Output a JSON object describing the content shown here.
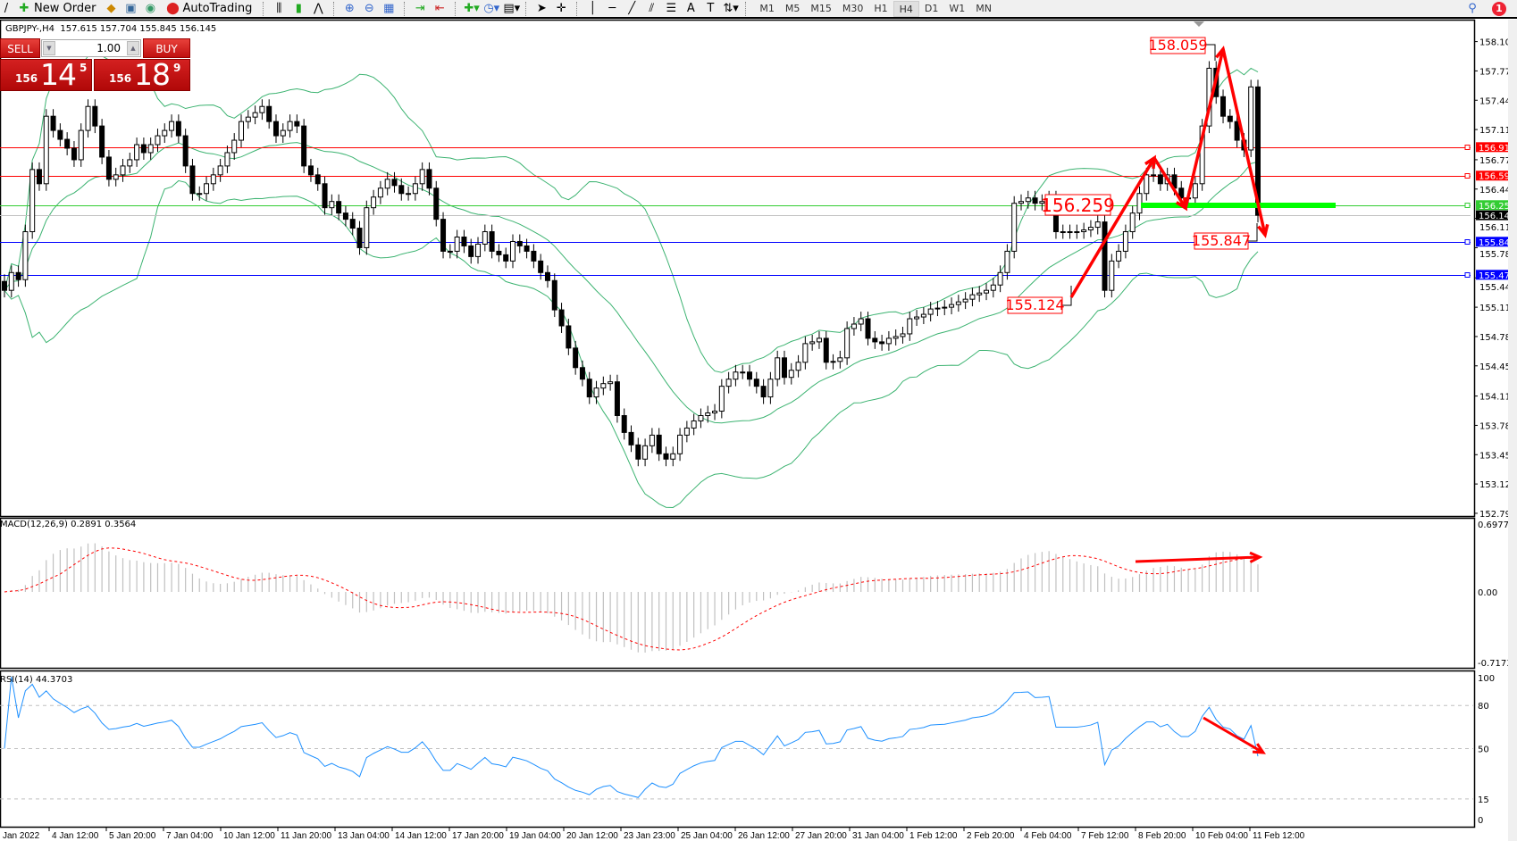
{
  "toolbar": {
    "new_order": "New Order",
    "autotrading": "AutoTrading",
    "timeframes": [
      "M1",
      "M5",
      "M15",
      "M30",
      "H1",
      "H4",
      "D1",
      "W1",
      "MN"
    ],
    "active_timeframe": "H4",
    "notifications": "1"
  },
  "symbol_header": "GBPJPY-,H4  157.615 157.704 155.845 156.145",
  "trade_panel": {
    "sell_label": "SELL",
    "buy_label": "BUY",
    "volume": "1.00",
    "sell_price": {
      "prefix": "156",
      "big": "14",
      "sup": "5"
    },
    "buy_price": {
      "prefix": "156",
      "big": "18",
      "sup": "9"
    }
  },
  "chart_data": {
    "type": "candlestick",
    "symbol": "GBPJPY-",
    "timeframe": "H4",
    "ylim": [
      152.79,
      158.1
    ],
    "price_ticks": [
      "158.100",
      "157.770",
      "157.440",
      "157.110",
      "156.770",
      "156.440",
      "156.110",
      "155.780",
      "155.440",
      "155.110",
      "154.780",
      "154.450",
      "154.110",
      "153.780",
      "153.450",
      "153.120",
      "152.790"
    ],
    "time_labels": [
      "Jan 2022",
      "4 Jan 12:00",
      "5 Jan 20:00",
      "7 Jan 04:00",
      "10 Jan 12:00",
      "11 Jan 20:00",
      "13 Jan 04:00",
      "14 Jan 12:00",
      "17 Jan 20:00",
      "19 Jan 04:00",
      "20 Jan 12:00",
      "23 Jan 23:00",
      "25 Jan 04:00",
      "26 Jan 12:00",
      "27 Jan 20:00",
      "31 Jan 04:00",
      "1 Feb 12:00",
      "2 Feb 20:00",
      "4 Feb 04:00",
      "7 Feb 12:00",
      "8 Feb 20:00",
      "10 Feb 04:00",
      "11 Feb 12:00"
    ],
    "closes": [
      155.3,
      155.5,
      155.42,
      155.96,
      156.66,
      156.5,
      157.26,
      157.1,
      157.0,
      156.9,
      156.77,
      157.1,
      157.37,
      157.15,
      156.8,
      156.55,
      156.6,
      156.7,
      156.77,
      156.94,
      156.85,
      156.94,
      157.04,
      157.1,
      157.2,
      157.04,
      156.7,
      156.39,
      156.39,
      156.5,
      156.6,
      156.7,
      156.85,
      156.99,
      157.2,
      157.25,
      157.3,
      157.37,
      157.2,
      157.04,
      157.1,
      157.2,
      157.15,
      156.7,
      156.6,
      156.5,
      156.23,
      156.3,
      156.17,
      156.1,
      156.0,
      155.78,
      156.23,
      156.35,
      156.45,
      156.55,
      156.48,
      156.39,
      156.39,
      156.5,
      156.66,
      156.45,
      156.1,
      155.74,
      155.74,
      155.9,
      155.8,
      155.68,
      155.82,
      155.96,
      155.74,
      155.7,
      155.63,
      155.85,
      155.8,
      155.74,
      155.63,
      155.5,
      155.41,
      155.08,
      154.9,
      154.65,
      154.43,
      154.3,
      154.1,
      154.2,
      154.25,
      154.27,
      153.89,
      153.7,
      153.56,
      153.4,
      153.55,
      153.67,
      153.46,
      153.4,
      153.46,
      153.67,
      153.75,
      153.83,
      153.89,
      153.92,
      153.94,
      154.22,
      154.3,
      154.38,
      154.38,
      154.3,
      154.22,
      154.1,
      154.3,
      154.54,
      154.32,
      154.4,
      154.49,
      154.7,
      154.72,
      154.76,
      154.49,
      154.5,
      154.54,
      154.87,
      154.92,
      154.98,
      154.76,
      154.72,
      154.7,
      154.76,
      154.78,
      154.81,
      154.98,
      155.0,
      155.03,
      155.09,
      155.1,
      155.11,
      155.14,
      155.17,
      155.2,
      155.25,
      155.27,
      155.3,
      155.36,
      155.5,
      155.74,
      156.28,
      156.3,
      156.34,
      156.28,
      156.3,
      156.34,
      155.96,
      155.96,
      155.96,
      155.96,
      155.98,
      156.01,
      156.07,
      155.3,
      155.63,
      155.74,
      155.96,
      156.17,
      156.39,
      156.6,
      156.6,
      156.5,
      156.6,
      156.45,
      156.34,
      156.34,
      156.5,
      157.15,
      157.8,
      157.48,
      157.26,
      157.2,
      156.99,
      156.88,
      157.59,
      156.145
    ],
    "bollinger": {
      "period": 20,
      "deviation": 2,
      "color": "#3cb371"
    },
    "horizontal_lines": [
      {
        "price": "156.912",
        "color": "#ff0000"
      },
      {
        "price": "156.591",
        "color": "#ff0000"
      },
      {
        "price": "156.259",
        "color": "#32cd32"
      },
      {
        "price": "156.145",
        "color": "#000000",
        "line": "#c0c0c0"
      },
      {
        "price": "155.847",
        "color": "#0000ff"
      },
      {
        "price": "155.475",
        "color": "#0000ff"
      }
    ],
    "annotations": [
      "158.059",
      "156.259",
      "155.847",
      "155.124"
    ],
    "macd": {
      "label": "MACD(12,26,9) 0.2891 0.3564",
      "ticks": [
        "0.6977",
        "0.00",
        "-0.7173"
      ],
      "range": [
        -0.7173,
        0.6977
      ],
      "hist_color": "#c0c0c0",
      "signal_color": "#ff0000"
    },
    "rsi": {
      "label": "RSI(14) 44.3703",
      "ticks": [
        "100",
        "80",
        "50",
        "15",
        "0"
      ],
      "levels": [
        80,
        50,
        15
      ],
      "color": "#1e90ff"
    }
  }
}
